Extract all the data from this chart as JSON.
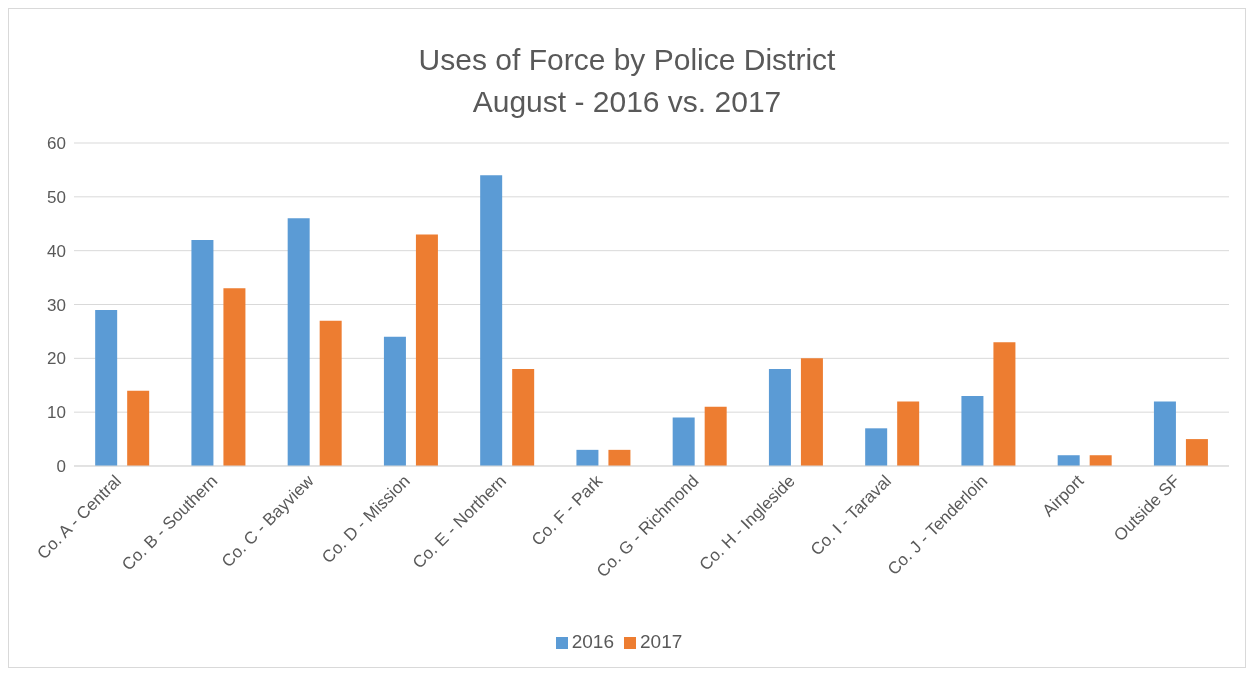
{
  "chart_data": {
    "type": "bar",
    "title": "Uses of Force by Police District",
    "subtitle": "August - 2016 vs. 2017",
    "categories": [
      "Co. A - Central",
      "Co. B - Southern",
      "Co. C - Bayview",
      "Co. D - Mission",
      "Co. E - Northern",
      "Co. F - Park",
      "Co. G - Richmond",
      "Co. H - Ingleside",
      "Co. I - Taraval",
      "Co. J - Tenderloin",
      "Airport",
      "Outside SF"
    ],
    "series": [
      {
        "name": "2016",
        "color": "#5b9bd5",
        "values": [
          29,
          42,
          46,
          24,
          54,
          3,
          9,
          18,
          7,
          13,
          2,
          12
        ]
      },
      {
        "name": "2017",
        "color": "#ed7d31",
        "values": [
          14,
          33,
          27,
          43,
          18,
          3,
          11,
          20,
          12,
          23,
          2,
          5
        ]
      }
    ],
    "ylim": [
      0,
      60
    ],
    "yticks": [
      0,
      10,
      20,
      30,
      40,
      50,
      60
    ],
    "grid": "y",
    "legend": "bottom"
  }
}
